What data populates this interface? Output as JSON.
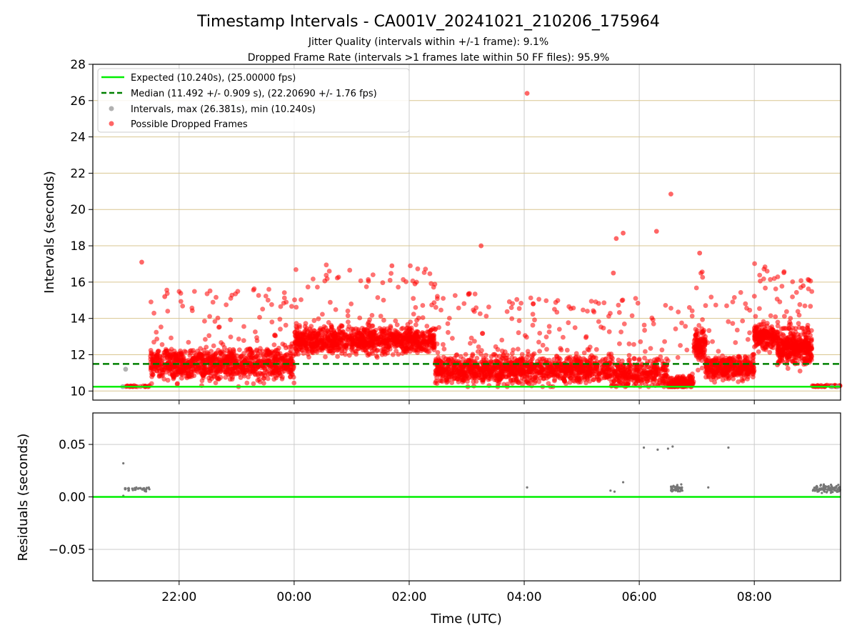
{
  "figure": {
    "title": "Timestamp Intervals - CA001V_20241021_210206_175964",
    "subtitle1": "Jitter Quality (intervals within +/-1 frame): 9.1%",
    "subtitle2": "Dropped Frame Rate (intervals >1 frames late within 50 FF files): 95.9%"
  },
  "colors": {
    "expected": "#00ee00",
    "median": "#008000",
    "interval_points": "#9e9e9e",
    "dropped_points": "#ff0000",
    "residual_points": "#777777",
    "grid": "#cccccc",
    "hgrid_top": "#d9c690"
  },
  "chart_data": [
    {
      "type": "scatter",
      "panel": "top",
      "ylabel": "Intervals (seconds)",
      "xlim": [
        -3.5,
        9.5
      ],
      "ylim": [
        9.5,
        28
      ],
      "yticks": [
        10,
        12,
        14,
        16,
        18,
        20,
        22,
        24,
        26,
        28
      ],
      "hgrid_values": [
        10,
        12,
        14,
        16,
        18,
        20,
        22,
        24,
        26,
        28
      ],
      "vgrid_hours": [
        -2,
        0,
        2,
        4,
        6,
        8
      ],
      "legend": {
        "placement": "upper-left",
        "entries": [
          "Expected (10.240s), (25.00000 fps)",
          "Median (11.492 +/- 0.909 s), (22.20690 +/- 1.76 fps)",
          "Intervals, max (26.381s), min (10.240s)",
          "Possible Dropped Frames"
        ]
      },
      "expected_interval": 10.24,
      "median_interval": 11.492,
      "max_interval": 26.381,
      "min_interval": 10.24,
      "segments": [
        {
          "x0": -2.95,
          "x1": -2.5,
          "base": 10.25,
          "spread": 0.05,
          "n": 25,
          "spike_rate": 0
        },
        {
          "x0": -2.5,
          "x1": 0.0,
          "base": 11.5,
          "spread": 0.8,
          "n": 1100,
          "spike_rate": 0.05
        },
        {
          "x0": 0.0,
          "x1": 2.45,
          "base": 12.8,
          "spread": 0.7,
          "n": 1100,
          "spike_rate": 0.05
        },
        {
          "x0": 2.45,
          "x1": 5.5,
          "base": 11.2,
          "spread": 0.7,
          "n": 1300,
          "spike_rate": 0.06
        },
        {
          "x0": 5.5,
          "x1": 6.5,
          "base": 11.0,
          "spread": 0.8,
          "n": 350,
          "spike_rate": 0.07
        },
        {
          "x0": 6.5,
          "x1": 6.95,
          "base": 10.5,
          "spread": 0.4,
          "n": 150,
          "spike_rate": 0.04
        },
        {
          "x0": 6.95,
          "x1": 7.15,
          "base": 12.5,
          "spread": 0.9,
          "n": 120,
          "spike_rate": 0.05
        },
        {
          "x0": 7.15,
          "x1": 8.0,
          "base": 11.3,
          "spread": 0.6,
          "n": 400,
          "spike_rate": 0.05
        },
        {
          "x0": 8.0,
          "x1": 8.4,
          "base": 13.0,
          "spread": 0.6,
          "n": 200,
          "spike_rate": 0.06
        },
        {
          "x0": 8.4,
          "x1": 9.0,
          "base": 12.4,
          "spread": 0.9,
          "n": 400,
          "spike_rate": 0.06
        },
        {
          "x0": 9.0,
          "x1": 9.5,
          "base": 10.27,
          "spread": 0.04,
          "n": 40,
          "spike_rate": 0
        }
      ],
      "gray_points": [
        {
          "x": -2.98,
          "y": 10.24
        },
        {
          "x": -2.93,
          "y": 11.2
        },
        {
          "x": 9.35,
          "y": 10.24
        },
        {
          "x": 9.45,
          "y": 10.24
        }
      ],
      "outliers": [
        {
          "x": -2.65,
          "y": 17.1
        },
        {
          "x": -2.25,
          "y": 15.2
        },
        {
          "x": 1.7,
          "y": 16.9
        },
        {
          "x": 2.1,
          "y": 15.9
        },
        {
          "x": 3.25,
          "y": 18.0
        },
        {
          "x": 4.05,
          "y": 26.4
        },
        {
          "x": 5.55,
          "y": 16.5
        },
        {
          "x": 5.6,
          "y": 18.4
        },
        {
          "x": 5.72,
          "y": 18.7
        },
        {
          "x": 6.3,
          "y": 18.8
        },
        {
          "x": 6.55,
          "y": 20.85
        },
        {
          "x": 7.05,
          "y": 17.6
        },
        {
          "x": 8.85,
          "y": 15.8
        }
      ]
    },
    {
      "type": "scatter",
      "panel": "bottom",
      "xlabel": "Time (UTC)",
      "ylabel": "Residuals (seconds)",
      "xlim": [
        -3.5,
        9.5
      ],
      "ylim": [
        -0.08,
        0.08
      ],
      "yticks": [
        0.05,
        0.0,
        -0.05
      ],
      "ytick_labels": [
        "0.05",
        "0.00",
        "−0.05"
      ],
      "xticks": [
        -2,
        0,
        2,
        4,
        6,
        8
      ],
      "xtick_labels": [
        "22:00",
        "00:00",
        "02:00",
        "04:00",
        "06:00",
        "08:00"
      ],
      "baseline": 0.0,
      "clusters": [
        {
          "x0": -2.95,
          "x1": -2.5,
          "y": 0.0075,
          "spread": 0.002,
          "n": 40
        },
        {
          "x0": 6.55,
          "x1": 6.75,
          "y": 0.008,
          "spread": 0.003,
          "n": 50
        },
        {
          "x0": 9.0,
          "x1": 9.5,
          "y": 0.008,
          "spread": 0.004,
          "n": 90
        }
      ],
      "points": [
        {
          "x": -2.97,
          "y": 0.032
        },
        {
          "x": -2.97,
          "y": 0.001
        },
        {
          "x": 4.05,
          "y": 0.009
        },
        {
          "x": 5.5,
          "y": 0.006
        },
        {
          "x": 5.57,
          "y": 0.005
        },
        {
          "x": 5.72,
          "y": 0.014
        },
        {
          "x": 6.08,
          "y": 0.047
        },
        {
          "x": 6.32,
          "y": 0.045
        },
        {
          "x": 6.5,
          "y": 0.046
        },
        {
          "x": 6.58,
          "y": 0.048
        },
        {
          "x": 7.2,
          "y": 0.009
        },
        {
          "x": 7.55,
          "y": 0.047
        }
      ]
    }
  ]
}
